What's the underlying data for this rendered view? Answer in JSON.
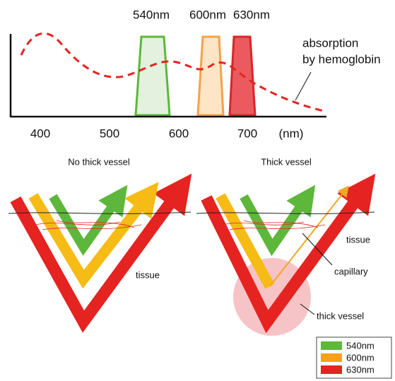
{
  "spectrum": {
    "filters": [
      {
        "label": "540nm"
      },
      {
        "label": "600nm"
      },
      {
        "label": "630nm"
      }
    ],
    "annotation": [
      "absorption",
      "by hemoglobin"
    ],
    "ticks": [
      400,
      500,
      600,
      700
    ],
    "unit": "(nm)"
  },
  "panels": [
    {
      "title": "No thick vessel",
      "labels": [
        "tissue"
      ]
    },
    {
      "title": "Thick vessel",
      "labels": [
        "tissue",
        "capillary",
        "thick vessel"
      ]
    }
  ],
  "legend": [
    {
      "label": "540nm"
    },
    {
      "label": "600nm"
    },
    {
      "label": "630nm"
    }
  ]
}
